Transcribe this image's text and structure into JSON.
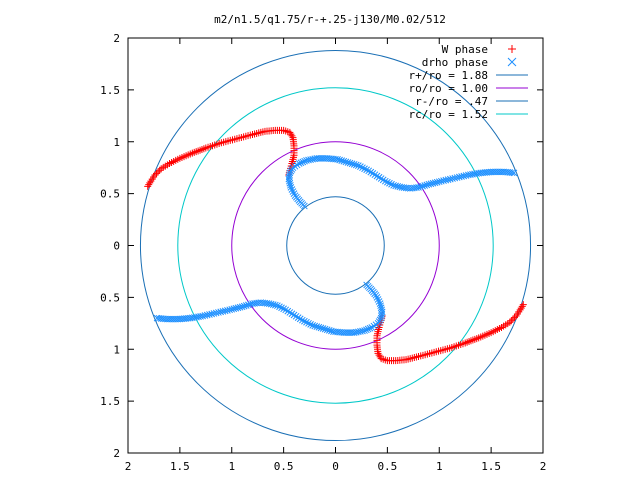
{
  "chart_data": {
    "type": "scatter",
    "title": "m2/n1.5/q1.75/r-+.25-j130/M0.02/512",
    "xlabel": "",
    "ylabel": "",
    "xlim": [
      -2,
      2
    ],
    "ylim": [
      -2,
      2
    ],
    "x_tick_labels": [
      "2",
      "1.5",
      "1",
      "0.5",
      "0",
      "0.5",
      "1",
      "1.5",
      "2"
    ],
    "y_tick_labels": [
      "2",
      "1.5",
      "1",
      "0.5",
      "0",
      "0.5",
      "1",
      "1.5",
      "2"
    ],
    "grid": false,
    "legend_position": "top-right",
    "circles": [
      {
        "name": "r+/ro = 1.88",
        "radius": 1.88,
        "color": "#1a6fb5"
      },
      {
        "name": "ro/ro = 1.00",
        "radius": 1.0,
        "color": "#9400d3"
      },
      {
        "name": "r-/ro =  .47",
        "radius": 0.47,
        "color": "#1a6fb5"
      },
      {
        "name": "rc/ro = 1.52",
        "radius": 1.52,
        "color": "#00c8c8"
      }
    ],
    "series": [
      {
        "name": "W phase",
        "marker": "plus",
        "color": "#ff0000",
        "arms": [
          {
            "points": [
              [
                -1.81,
                0.57
              ],
              [
                -1.78,
                0.62
              ],
              [
                -1.74,
                0.68
              ],
              [
                -1.68,
                0.74
              ],
              [
                -1.6,
                0.79
              ],
              [
                -1.5,
                0.84
              ],
              [
                -1.38,
                0.89
              ],
              [
                -1.25,
                0.94
              ],
              [
                -1.1,
                0.99
              ],
              [
                -0.95,
                1.03
              ],
              [
                -0.8,
                1.07
              ],
              [
                -0.68,
                1.1
              ],
              [
                -0.58,
                1.11
              ],
              [
                -0.5,
                1.11
              ],
              [
                -0.44,
                1.09
              ],
              [
                -0.41,
                1.04
              ],
              [
                -0.4,
                0.96
              ],
              [
                -0.4,
                0.87
              ],
              [
                -0.42,
                0.79
              ],
              [
                -0.44,
                0.72
              ],
              [
                -0.45,
                0.68
              ]
            ]
          },
          {
            "points": [
              [
                1.81,
                -0.57
              ],
              [
                1.78,
                -0.62
              ],
              [
                1.74,
                -0.68
              ],
              [
                1.68,
                -0.74
              ],
              [
                1.6,
                -0.79
              ],
              [
                1.5,
                -0.84
              ],
              [
                1.38,
                -0.89
              ],
              [
                1.25,
                -0.94
              ],
              [
                1.1,
                -0.99
              ],
              [
                0.95,
                -1.03
              ],
              [
                0.8,
                -1.07
              ],
              [
                0.68,
                -1.1
              ],
              [
                0.58,
                -1.11
              ],
              [
                0.5,
                -1.11
              ],
              [
                0.44,
                -1.09
              ],
              [
                0.41,
                -1.04
              ],
              [
                0.4,
                -0.96
              ],
              [
                0.4,
                -0.87
              ],
              [
                0.42,
                -0.79
              ],
              [
                0.44,
                -0.72
              ],
              [
                0.45,
                -0.68
              ]
            ]
          }
        ]
      },
      {
        "name": "drho phase",
        "marker": "cross",
        "color": "#1e90ff",
        "arms": [
          {
            "points": [
              [
                -0.3,
                0.38
              ],
              [
                -0.34,
                0.42
              ],
              [
                -0.39,
                0.48
              ],
              [
                -0.43,
                0.56
              ],
              [
                -0.45,
                0.64
              ],
              [
                -0.44,
                0.7
              ],
              [
                -0.41,
                0.75
              ],
              [
                -0.35,
                0.79
              ],
              [
                -0.28,
                0.82
              ],
              [
                -0.18,
                0.84
              ],
              [
                -0.08,
                0.84
              ],
              [
                0.02,
                0.83
              ],
              [
                0.12,
                0.8
              ],
              [
                0.22,
                0.77
              ],
              [
                0.32,
                0.72
              ],
              [
                0.4,
                0.67
              ],
              [
                0.48,
                0.62
              ],
              [
                0.56,
                0.58
              ],
              [
                0.64,
                0.56
              ],
              [
                0.72,
                0.55
              ],
              [
                0.8,
                0.56
              ],
              [
                0.9,
                0.59
              ],
              [
                1.02,
                0.62
              ],
              [
                1.15,
                0.65
              ],
              [
                1.28,
                0.68
              ],
              [
                1.4,
                0.7
              ],
              [
                1.52,
                0.71
              ],
              [
                1.62,
                0.71
              ],
              [
                1.72,
                0.7
              ]
            ]
          },
          {
            "points": [
              [
                0.3,
                -0.38
              ],
              [
                0.34,
                -0.42
              ],
              [
                0.39,
                -0.48
              ],
              [
                0.43,
                -0.56
              ],
              [
                0.45,
                -0.64
              ],
              [
                0.44,
                -0.7
              ],
              [
                0.41,
                -0.75
              ],
              [
                0.35,
                -0.79
              ],
              [
                0.28,
                -0.82
              ],
              [
                0.18,
                -0.84
              ],
              [
                0.08,
                -0.84
              ],
              [
                -0.02,
                -0.83
              ],
              [
                -0.12,
                -0.8
              ],
              [
                -0.22,
                -0.77
              ],
              [
                -0.32,
                -0.72
              ],
              [
                -0.4,
                -0.67
              ],
              [
                -0.48,
                -0.62
              ],
              [
                -0.56,
                -0.58
              ],
              [
                -0.64,
                -0.56
              ],
              [
                -0.72,
                -0.55
              ],
              [
                -0.8,
                -0.56
              ],
              [
                -0.9,
                -0.59
              ],
              [
                -1.02,
                -0.62
              ],
              [
                -1.15,
                -0.65
              ],
              [
                -1.28,
                -0.68
              ],
              [
                -1.4,
                -0.7
              ],
              [
                -1.52,
                -0.71
              ],
              [
                -1.62,
                -0.71
              ],
              [
                -1.72,
                -0.7
              ]
            ]
          }
        ]
      }
    ]
  }
}
